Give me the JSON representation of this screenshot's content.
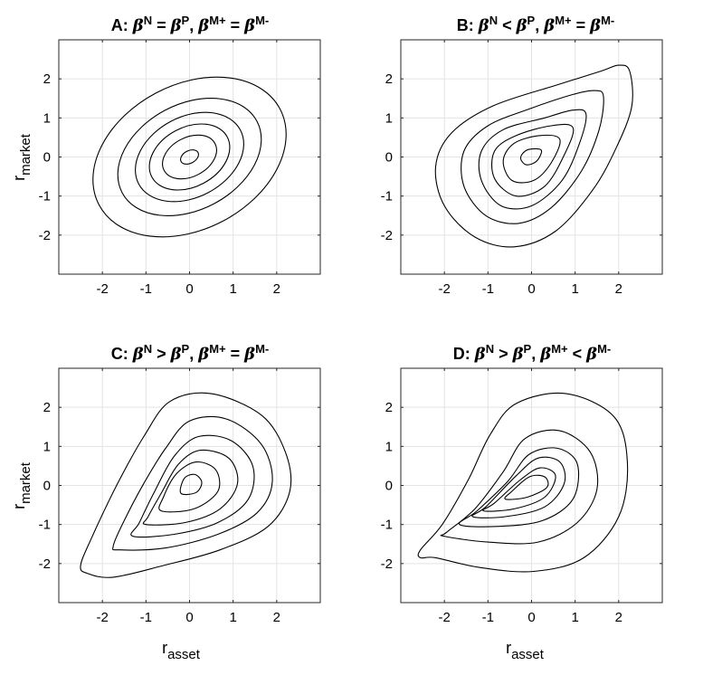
{
  "chart_data": [
    {
      "type": "contour",
      "panel": "A",
      "title_prefix": "A: ",
      "title_relation_1": " = ",
      "title_relation_2": " = ",
      "beta_1": "N",
      "beta_2": "P",
      "beta_3": "M+",
      "beta_4": "M-",
      "ylabel_main": "r",
      "ylabel_sub": "market",
      "xlabel_main": "",
      "xlabel_sub": "",
      "show_ylabel": true,
      "show_xlabel": false,
      "xlim": [
        -3,
        3
      ],
      "ylim": [
        -3,
        3
      ],
      "xticks": [
        "-2",
        "-1",
        "0",
        "1",
        "2"
      ],
      "yticks": [
        "2",
        "1",
        "0",
        "-1",
        "-2"
      ],
      "grid": true,
      "contours": [
        {
          "cx": 0,
          "cy": 0,
          "rx": 2.35,
          "ry": 1.85,
          "rotation_deg": 28
        },
        {
          "cx": 0,
          "cy": 0,
          "rx": 1.75,
          "ry": 1.35,
          "rotation_deg": 28
        },
        {
          "cx": 0,
          "cy": 0,
          "rx": 1.32,
          "ry": 1.03,
          "rotation_deg": 28
        },
        {
          "cx": 0,
          "cy": 0,
          "rx": 0.98,
          "ry": 0.76,
          "rotation_deg": 28
        },
        {
          "cx": 0,
          "cy": 0,
          "rx": 0.66,
          "ry": 0.5,
          "rotation_deg": 28
        },
        {
          "cx": 0,
          "cy": 0,
          "rx": 0.22,
          "ry": 0.16,
          "rotation_deg": 28
        }
      ]
    },
    {
      "type": "contour",
      "panel": "B",
      "title_prefix": "B: ",
      "title_relation_1": " < ",
      "title_relation_2": " = ",
      "beta_1": "N",
      "beta_2": "P",
      "beta_3": "M+",
      "beta_4": "M-",
      "ylabel_main": "",
      "ylabel_sub": "",
      "xlabel_main": "",
      "xlabel_sub": "",
      "show_ylabel": false,
      "show_xlabel": false,
      "xlim": [
        -3,
        3
      ],
      "ylim": [
        -3,
        3
      ],
      "xticks": [
        "-2",
        "-1",
        "0",
        "1",
        "2"
      ],
      "yticks": [
        "2",
        "1",
        "0",
        "-1",
        "-2"
      ],
      "grid": true,
      "contours": [
        {
          "points": [
            [
              2.25,
              2.2
            ],
            [
              2.3,
              1.3
            ],
            [
              1.95,
              0.25
            ],
            [
              1.4,
              -0.85
            ],
            [
              0.55,
              -1.9
            ],
            [
              -0.4,
              -2.3
            ],
            [
              -1.3,
              -2.05
            ],
            [
              -2.0,
              -1.25
            ],
            [
              -2.2,
              -0.25
            ],
            [
              -1.85,
              0.6
            ],
            [
              -0.9,
              1.3
            ],
            [
              0.6,
              1.85
            ],
            [
              1.6,
              2.2
            ],
            [
              2.0,
              2.35
            ]
          ]
        },
        {
          "points": [
            [
              1.65,
              1.55
            ],
            [
              1.55,
              0.7
            ],
            [
              1.15,
              -0.35
            ],
            [
              0.45,
              -1.3
            ],
            [
              -0.3,
              -1.7
            ],
            [
              -1.05,
              -1.5
            ],
            [
              -1.55,
              -0.75
            ],
            [
              -1.55,
              0.15
            ],
            [
              -1.0,
              0.8
            ],
            [
              0.0,
              1.25
            ],
            [
              0.95,
              1.6
            ],
            [
              1.45,
              1.7
            ]
          ]
        },
        {
          "points": [
            [
              1.25,
              1.1
            ],
            [
              1.1,
              0.35
            ],
            [
              0.7,
              -0.6
            ],
            [
              0.0,
              -1.25
            ],
            [
              -0.7,
              -1.25
            ],
            [
              -1.15,
              -0.6
            ],
            [
              -1.15,
              0.15
            ],
            [
              -0.65,
              0.7
            ],
            [
              0.3,
              1.0
            ],
            [
              0.95,
              1.2
            ]
          ]
        },
        {
          "points": [
            [
              0.95,
              0.75
            ],
            [
              0.75,
              0.05
            ],
            [
              0.3,
              -0.75
            ],
            [
              -0.35,
              -1.0
            ],
            [
              -0.85,
              -0.55
            ],
            [
              -0.85,
              0.15
            ],
            [
              -0.35,
              0.55
            ],
            [
              0.45,
              0.8
            ]
          ]
        },
        {
          "points": [
            [
              0.65,
              0.45
            ],
            [
              0.45,
              -0.15
            ],
            [
              0.05,
              -0.6
            ],
            [
              -0.45,
              -0.6
            ],
            [
              -0.65,
              -0.1
            ],
            [
              -0.4,
              0.35
            ],
            [
              0.2,
              0.55
            ]
          ]
        },
        {
          "points": [
            [
              0.22,
              0.18
            ],
            [
              0.12,
              -0.1
            ],
            [
              -0.12,
              -0.2
            ],
            [
              -0.25,
              -0.02
            ],
            [
              -0.1,
              0.18
            ]
          ]
        }
      ]
    },
    {
      "type": "contour",
      "panel": "C",
      "title_prefix": "C: ",
      "title_relation_1": " > ",
      "title_relation_2": " = ",
      "beta_1": "N",
      "beta_2": "P",
      "beta_3": "M+",
      "beta_4": "M-",
      "ylabel_main": "r",
      "ylabel_sub": "market",
      "xlabel_main": "r",
      "xlabel_sub": "asset",
      "show_ylabel": true,
      "show_xlabel": true,
      "xlim": [
        -3,
        3
      ],
      "ylim": [
        -3,
        3
      ],
      "xticks": [
        "-2",
        "-1",
        "0",
        "1",
        "2"
      ],
      "yticks": [
        "2",
        "1",
        "0",
        "-1",
        "-2"
      ],
      "grid": true,
      "contours": [
        {
          "points": [
            [
              -2.35,
              -2.25
            ],
            [
              -1.75,
              -2.35
            ],
            [
              -0.6,
              -2.05
            ],
            [
              0.7,
              -1.65
            ],
            [
              1.8,
              -1.05
            ],
            [
              2.3,
              -0.15
            ],
            [
              2.2,
              0.85
            ],
            [
              1.65,
              1.8
            ],
            [
              0.5,
              2.35
            ],
            [
              -0.45,
              2.15
            ],
            [
              -1.05,
              1.25
            ],
            [
              -1.65,
              0.05
            ],
            [
              -2.25,
              -1.35
            ],
            [
              -2.5,
              -2.05
            ]
          ]
        },
        {
          "points": [
            [
              -1.6,
              -1.65
            ],
            [
              -0.55,
              -1.6
            ],
            [
              0.65,
              -1.25
            ],
            [
              1.55,
              -0.7
            ],
            [
              1.9,
              0.1
            ],
            [
              1.65,
              1.05
            ],
            [
              0.85,
              1.7
            ],
            [
              0.0,
              1.65
            ],
            [
              -0.55,
              0.95
            ],
            [
              -1.05,
              0.05
            ],
            [
              -1.5,
              -0.9
            ],
            [
              -1.75,
              -1.55
            ]
          ]
        },
        {
          "points": [
            [
              -1.3,
              -1.3
            ],
            [
              -0.35,
              -1.25
            ],
            [
              0.65,
              -0.95
            ],
            [
              1.35,
              -0.35
            ],
            [
              1.45,
              0.5
            ],
            [
              0.95,
              1.15
            ],
            [
              0.2,
              1.25
            ],
            [
              -0.35,
              0.75
            ],
            [
              -0.8,
              -0.15
            ],
            [
              -1.15,
              -0.95
            ]
          ]
        },
        {
          "points": [
            [
              -1.0,
              -1.0
            ],
            [
              -0.1,
              -0.95
            ],
            [
              0.7,
              -0.6
            ],
            [
              1.1,
              0.05
            ],
            [
              0.9,
              0.7
            ],
            [
              0.25,
              0.9
            ],
            [
              -0.25,
              0.55
            ],
            [
              -0.65,
              -0.2
            ],
            [
              -0.95,
              -0.8
            ]
          ]
        },
        {
          "points": [
            [
              -0.65,
              -0.65
            ],
            [
              0.1,
              -0.6
            ],
            [
              0.65,
              -0.15
            ],
            [
              0.6,
              0.4
            ],
            [
              0.15,
              0.6
            ],
            [
              -0.3,
              0.3
            ],
            [
              -0.6,
              -0.3
            ]
          ]
        },
        {
          "points": [
            [
              -0.2,
              -0.2
            ],
            [
              0.15,
              -0.18
            ],
            [
              0.28,
              0.08
            ],
            [
              0.12,
              0.28
            ],
            [
              -0.12,
              0.18
            ]
          ]
        }
      ]
    },
    {
      "type": "contour",
      "panel": "D",
      "title_prefix": "D: ",
      "title_relation_1": " > ",
      "title_relation_2": " < ",
      "beta_1": "N",
      "beta_2": "P",
      "beta_3": "M+",
      "beta_4": "M-",
      "ylabel_main": "",
      "ylabel_sub": "",
      "xlabel_main": "r",
      "xlabel_sub": "asset",
      "show_ylabel": false,
      "show_xlabel": true,
      "xlim": [
        -3,
        3
      ],
      "ylim": [
        -3,
        3
      ],
      "xticks": [
        "-2",
        "-1",
        "0",
        "1",
        "2"
      ],
      "yticks": [
        "2",
        "1",
        "0",
        "-1",
        "-2"
      ],
      "grid": true,
      "contours": [
        {
          "points": [
            [
              -2.55,
              -1.85
            ],
            [
              -2.2,
              -1.85
            ],
            [
              -1.2,
              -2.1
            ],
            [
              0.05,
              -2.2
            ],
            [
              1.2,
              -1.85
            ],
            [
              2.0,
              -0.8
            ],
            [
              2.2,
              0.55
            ],
            [
              1.9,
              1.75
            ],
            [
              0.8,
              2.35
            ],
            [
              -0.35,
              2.1
            ],
            [
              -0.95,
              1.3
            ],
            [
              -1.45,
              0.15
            ],
            [
              -2.05,
              -1.0
            ],
            [
              -2.55,
              -1.65
            ]
          ]
        },
        {
          "points": [
            [
              -2.0,
              -1.3
            ],
            [
              -1.0,
              -1.45
            ],
            [
              0.15,
              -1.45
            ],
            [
              1.05,
              -0.95
            ],
            [
              1.5,
              -0.1
            ],
            [
              1.35,
              0.85
            ],
            [
              0.65,
              1.4
            ],
            [
              -0.15,
              1.2
            ],
            [
              -0.65,
              0.35
            ],
            [
              -1.3,
              -0.6
            ],
            [
              -1.95,
              -1.2
            ]
          ]
        },
        {
          "points": [
            [
              -1.65,
              -1.0
            ],
            [
              -0.8,
              -1.05
            ],
            [
              0.25,
              -0.9
            ],
            [
              0.95,
              -0.35
            ],
            [
              1.05,
              0.55
            ],
            [
              0.6,
              0.95
            ],
            [
              -0.05,
              0.8
            ],
            [
              -0.55,
              0.1
            ],
            [
              -1.25,
              -0.65
            ]
          ]
        },
        {
          "points": [
            [
              -1.35,
              -0.8
            ],
            [
              -0.6,
              -0.8
            ],
            [
              0.3,
              -0.55
            ],
            [
              0.75,
              0.05
            ],
            [
              0.65,
              0.6
            ],
            [
              0.15,
              0.7
            ],
            [
              -0.35,
              0.25
            ],
            [
              -1.05,
              -0.55
            ]
          ]
        },
        {
          "points": [
            [
              -1.1,
              -0.65
            ],
            [
              -0.4,
              -0.6
            ],
            [
              0.3,
              -0.3
            ],
            [
              0.55,
              0.25
            ],
            [
              0.2,
              0.45
            ],
            [
              -0.25,
              0.15
            ],
            [
              -0.85,
              -0.45
            ]
          ]
        },
        {
          "points": [
            [
              -0.6,
              -0.35
            ],
            [
              -0.1,
              -0.3
            ],
            [
              0.35,
              -0.05
            ],
            [
              0.3,
              0.22
            ],
            [
              -0.05,
              0.22
            ],
            [
              -0.45,
              -0.15
            ]
          ]
        }
      ]
    }
  ]
}
